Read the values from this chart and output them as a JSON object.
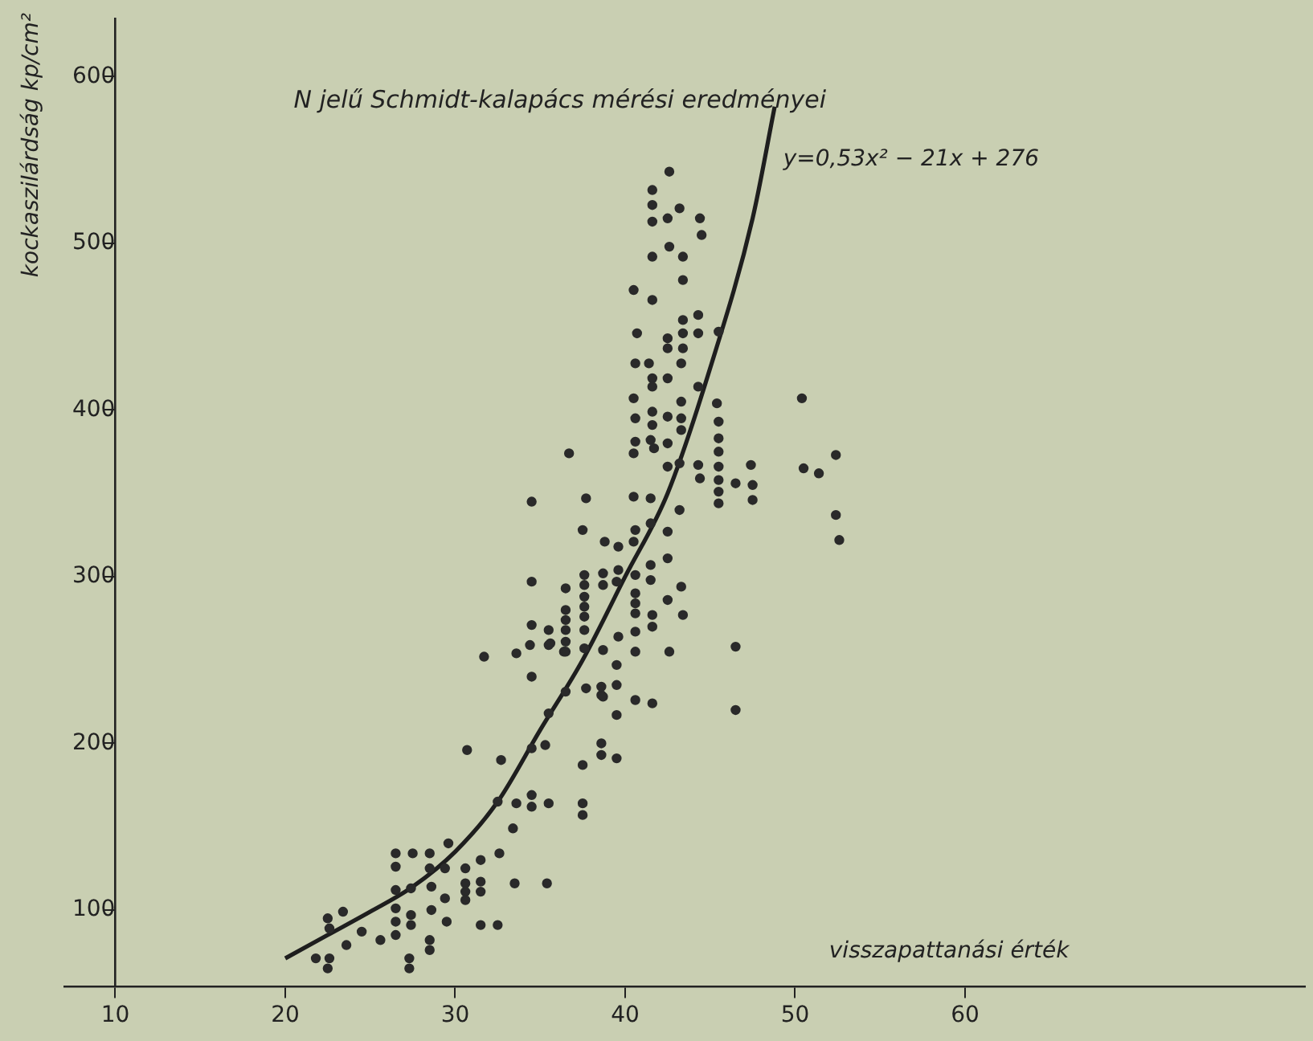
{
  "chart_data": {
    "type": "scatter",
    "title": "N jelű Schmidt-kalapács mérési eredményei",
    "xlabel": "visszapattanási érték",
    "ylabel": "kockaszilárdság kp/cm²",
    "annotations": [
      "y=0,53x² − 21x + 276"
    ],
    "xlim": [
      7,
      80
    ],
    "ylim": [
      54,
      635
    ],
    "xticks": [
      10,
      20,
      30,
      40,
      50,
      60
    ],
    "yticks": [
      100,
      200,
      300,
      400,
      500,
      600
    ],
    "grid": false,
    "legend": false,
    "marker": "circle",
    "series": [
      {
        "color": "#2a2a2a",
        "x": [
          22.5,
          22.6,
          23.4,
          23.6,
          21.8,
          22.6,
          22.5,
          24.5,
          25.6,
          26.5,
          26.5,
          27.5,
          28.5,
          26.5,
          27.4,
          27.4,
          26.5,
          26.5,
          26.5,
          27.4,
          27.3,
          27.3,
          28.5,
          28.6,
          28.6,
          28.5,
          28.5,
          29.4,
          29.4,
          29.5,
          30.6,
          30.6,
          30.6,
          30.6,
          31.5,
          31.5,
          31.5,
          31.5,
          32.5,
          32.6,
          33.4,
          33.5,
          33.6,
          34.5,
          34.5,
          35.5,
          35.4,
          37.5,
          37.5,
          37.5,
          32.7,
          30.7,
          35.3,
          34.5,
          31.7,
          33.6,
          34.4,
          35.5,
          36.4,
          37.7,
          38.6,
          38.6,
          38.6,
          29.6,
          32.5,
          34.5,
          35.5,
          36.5,
          34.5,
          34.5,
          34.5,
          35.5,
          35.6,
          36.5,
          36.5,
          36.5,
          36.5,
          36.5,
          36.5,
          36.7,
          37.6,
          37.6,
          37.6,
          37.6,
          37.6,
          37.6,
          37.6,
          37.5,
          37.7,
          38.8,
          38.7,
          38.7,
          39.6,
          39.6,
          39.5,
          39.6,
          38.7,
          39.5,
          39.5,
          39.5,
          38.6,
          38.7,
          39.5,
          40.5,
          41.6,
          41.5,
          41.5,
          41.5,
          41.5,
          41.6,
          41.6,
          42.5,
          42.5,
          42.5,
          42.6,
          43.3,
          43.4,
          43.2,
          40.6,
          40.5,
          40.6,
          40.5,
          40.6,
          41.4,
          41.6,
          41.6,
          41.6,
          41.6,
          41.5,
          41.7,
          42.5,
          42.5,
          42.5,
          42.5,
          43.3,
          43.3,
          43.3,
          43.3,
          43.2,
          44.3,
          44.3,
          44.4,
          45.4,
          45.5,
          45.5,
          45.5,
          45.5,
          45.5,
          45.5,
          45.5,
          46.5,
          47.4,
          47.5,
          47.5,
          46.5,
          46.5,
          40.6,
          40.5,
          40.6,
          40.6,
          40.6,
          40.6,
          40.6,
          40.6,
          40.6,
          42.6,
          41.6,
          41.6,
          41.6,
          42.5,
          43.2,
          44.4,
          44.5,
          42.6,
          41.6,
          43.4,
          43.4,
          40.5,
          41.6,
          43.4,
          44.3,
          40.7,
          42.5,
          42.5,
          43.4,
          43.4,
          44.3,
          45.5,
          50.4,
          52.4,
          50.5,
          51.4,
          52.4,
          52.6
        ],
        "values": [
          95,
          89,
          99,
          79,
          71,
          71,
          65,
          87,
          82,
          134,
          126,
          134,
          134,
          112,
          113,
          97,
          101,
          93,
          85,
          91,
          71,
          65,
          125,
          114,
          100,
          82,
          76,
          125,
          107,
          93,
          125,
          116,
          111,
          106,
          130,
          117,
          111,
          91,
          91,
          134,
          149,
          116,
          164,
          169,
          162,
          164,
          116,
          164,
          157,
          187,
          190,
          196,
          199,
          240,
          252,
          254,
          259,
          259,
          255,
          233,
          229,
          200,
          193,
          140,
          165,
          197,
          218,
          231,
          271,
          345,
          297,
          268,
          260,
          293,
          280,
          274,
          268,
          261,
          255,
          374,
          301,
          295,
          288,
          282,
          276,
          268,
          257,
          328,
          347,
          321,
          302,
          295,
          318,
          304,
          297,
          264,
          256,
          247,
          235,
          217,
          234,
          228,
          191,
          348,
          224,
          347,
          332,
          307,
          298,
          277,
          270,
          327,
          311,
          286,
          255,
          294,
          277,
          340,
          381,
          374,
          395,
          407,
          428,
          428,
          419,
          414,
          399,
          391,
          382,
          377,
          419,
          396,
          380,
          366,
          428,
          405,
          395,
          388,
          368,
          414,
          367,
          359,
          404,
          393,
          383,
          375,
          366,
          358,
          351,
          344,
          356,
          367,
          355,
          346,
          258,
          220,
          328,
          321,
          301,
          290,
          284,
          278,
          267,
          255,
          226,
          543,
          532,
          523,
          513,
          515,
          521,
          515,
          505,
          498,
          492,
          492,
          478,
          472,
          466,
          454,
          457,
          446,
          443,
          437,
          446,
          437,
          446,
          447,
          407,
          373,
          365,
          362,
          337,
          322
        ]
      },
      {
        "type": "line",
        "marker": "none",
        "color": "#1e1e1e",
        "line_style": "solid",
        "x": [
          20,
          22.5,
          25,
          27.5,
          30,
          32.5,
          35,
          37.5,
          40,
          42.5,
          45,
          47.5,
          48.8
        ],
        "values": [
          71,
          85,
          99,
          114,
          135,
          165,
          208,
          250,
          300,
          350,
          425,
          515,
          582
        ]
      }
    ]
  }
}
